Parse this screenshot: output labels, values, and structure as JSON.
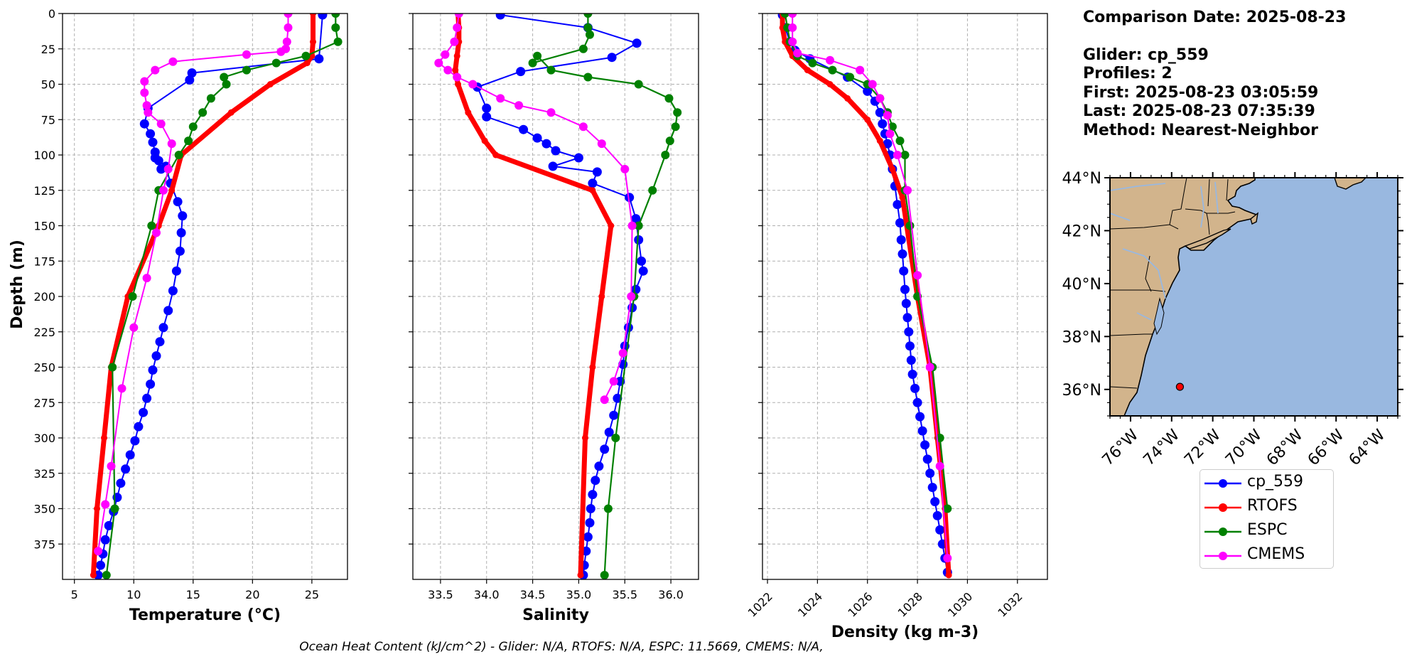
{
  "chart_data": [
    {
      "type": "line",
      "panel": "temperature",
      "xlabel": "Temperature (°C)",
      "ylabel": "Depth (m)",
      "xlim": [
        4,
        28
      ],
      "ylim": [
        400,
        0
      ],
      "xticks": [
        5,
        10,
        15,
        20,
        25
      ],
      "yticks": [
        0,
        25,
        50,
        75,
        100,
        125,
        150,
        175,
        200,
        225,
        250,
        275,
        300,
        325,
        350,
        375
      ],
      "grid": true,
      "series": [
        {
          "name": "cp_559",
          "color": "#0000ff",
          "x": [
            25.9,
            25.6,
            14.9,
            14.7,
            11.2,
            10.9,
            11.4,
            11.6,
            11.8,
            12.1,
            12.3,
            11.8,
            12.7,
            13.1,
            13.7,
            14.1,
            14.0,
            13.9,
            13.6,
            13.3,
            12.9,
            12.5,
            12.2,
            11.9,
            11.6,
            11.4,
            11.1,
            10.8,
            10.4,
            10.1,
            9.7,
            9.3,
            8.9,
            8.6,
            8.3,
            7.9,
            7.6,
            7.4,
            7.2,
            7.0
          ],
          "y": [
            1,
            32,
            42,
            47,
            67,
            78,
            85,
            91,
            98,
            104,
            110,
            102,
            108,
            120,
            133,
            143,
            155,
            168,
            182,
            196,
            210,
            222,
            232,
            242,
            252,
            262,
            272,
            282,
            292,
            302,
            312,
            322,
            332,
            342,
            352,
            362,
            372,
            382,
            390,
            397
          ]
        },
        {
          "name": "RTOFS",
          "color": "#ff0000",
          "x": [
            25.1,
            25.1,
            25.0,
            24.6,
            21.5,
            18.2,
            14.0,
            13.2,
            12.1,
            9.5,
            8.1,
            7.5,
            6.9,
            6.6
          ],
          "y": [
            0,
            20,
            30,
            35,
            50,
            70,
            100,
            125,
            150,
            200,
            250,
            300,
            350,
            397
          ]
        },
        {
          "name": "ESPC",
          "color": "#008000",
          "x": [
            27.0,
            27.0,
            27.2,
            24.5,
            22.0,
            19.5,
            17.6,
            17.8,
            16.5,
            15.8,
            15.0,
            14.6,
            13.8,
            12.1,
            11.5,
            9.9,
            8.2,
            8.4,
            7.7
          ],
          "y": [
            0,
            10,
            20,
            30,
            35,
            40,
            45,
            50,
            60,
            70,
            80,
            90,
            100,
            125,
            150,
            200,
            250,
            350,
            397
          ]
        },
        {
          "name": "CMEMS",
          "color": "#ff00ff",
          "x": [
            23.0,
            23.0,
            22.9,
            22.8,
            22.4,
            19.5,
            13.3,
            11.8,
            10.9,
            10.9,
            11.1,
            11.2,
            12.3,
            13.2,
            12.9,
            12.5,
            11.9,
            11.1,
            10.0,
            9.0,
            8.1,
            7.6,
            7.0
          ],
          "y": [
            0,
            10,
            20,
            25,
            27,
            29,
            34,
            40,
            48,
            56,
            65,
            70,
            78,
            92,
            110,
            125,
            155,
            187,
            222,
            265,
            320,
            347,
            380
          ]
        }
      ]
    },
    {
      "type": "line",
      "panel": "salinity",
      "xlabel": "Salinity",
      "xlim": [
        33.2,
        36.3
      ],
      "ylim": [
        400,
        0
      ],
      "xticks": [
        "33.5",
        "34.0",
        "34.5",
        "35.0",
        "35.5",
        "36.0"
      ],
      "grid": true,
      "series": [
        {
          "name": "cp_559",
          "color": "#0000ff",
          "x": [
            34.15,
            35.1,
            35.63,
            35.36,
            34.37,
            33.9,
            34.0,
            34.0,
            34.4,
            34.55,
            34.65,
            34.75,
            35.0,
            34.72,
            35.2,
            35.15,
            35.55,
            35.62,
            35.65,
            35.68,
            35.7,
            35.62,
            35.58,
            35.54,
            35.5,
            35.48,
            35.45,
            35.42,
            35.38,
            35.33,
            35.28,
            35.22,
            35.18,
            35.15,
            35.13,
            35.12,
            35.1,
            35.08,
            35.06,
            35.05
          ],
          "y": [
            1,
            10,
            21,
            31,
            41,
            52,
            67,
            73,
            82,
            88,
            92,
            97,
            102,
            108,
            112,
            120,
            130,
            145,
            160,
            175,
            182,
            195,
            208,
            222,
            235,
            248,
            260,
            272,
            284,
            296,
            308,
            320,
            330,
            340,
            350,
            360,
            370,
            380,
            390,
            397
          ]
        },
        {
          "name": "RTOFS",
          "color": "#ff0000",
          "x": [
            33.69,
            33.7,
            33.7,
            33.68,
            33.66,
            33.69,
            33.8,
            33.98,
            34.1,
            35.15,
            35.35,
            35.25,
            35.15,
            35.07,
            35.02
          ],
          "y": [
            0,
            10,
            20,
            30,
            40,
            50,
            70,
            90,
            100,
            125,
            150,
            200,
            250,
            300,
            397
          ]
        },
        {
          "name": "ESPC",
          "color": "#008000",
          "x": [
            35.1,
            35.1,
            35.12,
            35.05,
            34.5,
            34.55,
            34.7,
            35.1,
            35.65,
            35.98,
            36.07,
            36.05,
            35.99,
            35.94,
            35.8,
            35.65,
            35.6,
            35.4,
            35.32,
            35.28
          ],
          "y": [
            0,
            10,
            15,
            25,
            35,
            30,
            40,
            45,
            50,
            60,
            70,
            80,
            90,
            100,
            125,
            150,
            200,
            300,
            350,
            397
          ]
        },
        {
          "name": "CMEMS",
          "color": "#ff00ff",
          "x": [
            33.7,
            33.68,
            33.65,
            33.55,
            33.48,
            33.58,
            33.68,
            33.85,
            34.15,
            34.35,
            34.7,
            35.05,
            35.25,
            35.5,
            35.58,
            35.57,
            35.48,
            35.38,
            35.28
          ],
          "y": [
            0,
            10,
            20,
            29,
            35,
            40,
            45,
            50,
            60,
            65,
            70,
            80,
            92,
            110,
            150,
            200,
            240,
            260,
            273
          ]
        }
      ]
    },
    {
      "type": "line",
      "panel": "density",
      "xlabel": "Density (kg m-3)",
      "xlim": [
        1021.8,
        1033.2
      ],
      "ylim": [
        400,
        0
      ],
      "xticks": [
        "1022",
        "1024",
        "1026",
        "1028",
        "1030",
        "1032"
      ],
      "grid": true,
      "series": [
        {
          "name": "cp_559",
          "color": "#0000ff",
          "x": [
            1022.6,
            1022.7,
            1022.9,
            1023.1,
            1023.7,
            1025.2,
            1026.0,
            1026.3,
            1026.5,
            1026.6,
            1026.7,
            1026.8,
            1026.9,
            1027.0,
            1027.1,
            1027.2,
            1027.3,
            1027.35,
            1027.4,
            1027.45,
            1027.5,
            1027.55,
            1027.6,
            1027.65,
            1027.7,
            1027.75,
            1027.8,
            1027.9,
            1028.0,
            1028.1,
            1028.2,
            1028.3,
            1028.4,
            1028.5,
            1028.6,
            1028.7,
            1028.8,
            1028.9,
            1029.0,
            1029.1,
            1029.2
          ],
          "y": [
            1,
            10,
            20,
            26,
            32,
            45,
            55,
            62,
            70,
            78,
            85,
            92,
            100,
            110,
            122,
            135,
            148,
            160,
            170,
            182,
            195,
            205,
            215,
            225,
            235,
            245,
            255,
            265,
            275,
            285,
            295,
            305,
            315,
            325,
            335,
            345,
            355,
            365,
            375,
            385,
            395
          ]
        },
        {
          "name": "RTOFS",
          "color": "#ff0000",
          "x": [
            1022.6,
            1022.6,
            1022.7,
            1023.0,
            1023.6,
            1024.5,
            1025.2,
            1026.0,
            1026.5,
            1027.0,
            1027.4,
            1028.0,
            1028.5,
            1028.8,
            1029.1,
            1029.25
          ],
          "y": [
            0,
            10,
            20,
            30,
            40,
            50,
            60,
            75,
            90,
            110,
            130,
            200,
            250,
            300,
            350,
            397
          ]
        },
        {
          "name": "ESPC",
          "color": "#008000",
          "x": [
            1022.7,
            1022.8,
            1022.9,
            1023.2,
            1023.8,
            1024.6,
            1025.3,
            1026.0,
            1026.5,
            1026.8,
            1027.0,
            1027.3,
            1027.5,
            1027.5,
            1027.7,
            1028.0,
            1028.6,
            1028.9,
            1029.2
          ],
          "y": [
            0,
            10,
            20,
            30,
            35,
            40,
            45,
            50,
            60,
            70,
            80,
            90,
            100,
            125,
            150,
            200,
            250,
            300,
            350
          ]
        },
        {
          "name": "CMEMS",
          "color": "#ff00ff",
          "x": [
            1023.0,
            1023.0,
            1023.0,
            1023.2,
            1024.5,
            1025.7,
            1026.2,
            1026.5,
            1026.8,
            1026.9,
            1027.2,
            1027.6,
            1028.0,
            1028.5,
            1028.9,
            1029.2
          ],
          "y": [
            0,
            10,
            20,
            28,
            33,
            40,
            50,
            60,
            72,
            85,
            100,
            125,
            185,
            250,
            320,
            385
          ]
        }
      ]
    }
  ],
  "info": {
    "comparison_date": "Comparison Date: 2025-08-23",
    "glider": "Glider: cp_559",
    "profiles": "Profiles: 2",
    "first": "First: 2025-08-23 03:05:59",
    "last": "Last: 2025-08-23 07:35:39",
    "method": "Method: Nearest-Neighbor"
  },
  "map": {
    "lat_ticks": [
      "44°N",
      "42°N",
      "40°N",
      "38°N",
      "36°N"
    ],
    "lon_ticks": [
      "76°W",
      "74°W",
      "72°W",
      "70°W",
      "68°W",
      "66°W",
      "64°W"
    ],
    "land_color": "#d2b48c",
    "ocean_color": "#99b8e0",
    "glider_position": {
      "lon": -73.6,
      "lat": 36.1
    }
  },
  "legend": {
    "items": [
      {
        "label": "cp_559",
        "color": "#0000ff"
      },
      {
        "label": "RTOFS",
        "color": "#ff0000"
      },
      {
        "label": "ESPC",
        "color": "#008000"
      },
      {
        "label": "CMEMS",
        "color": "#ff00ff"
      }
    ]
  },
  "footer": "Ocean Heat Content (kJ/cm^2) - Glider: N/A,  RTOFS: N/A,  ESPC: 11.5669,  CMEMS: N/A,"
}
